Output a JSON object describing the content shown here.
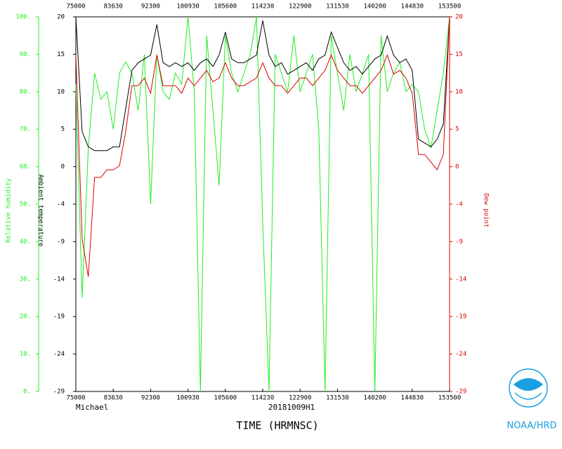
{
  "chart_data": {
    "type": "line",
    "flight": "Michael",
    "mission": "20181009H1",
    "xlabel": "TIME (HRMNSC)",
    "logo_text": "NOAA/HRD",
    "x": [
      28200,
      28665,
      29130,
      29595,
      30060,
      30525,
      30990,
      31455,
      31920,
      32385,
      32850,
      33315,
      33780,
      34245,
      34710,
      35175,
      35640,
      36105,
      36570,
      37035,
      37500,
      37965,
      38430,
      38895,
      39360,
      39825,
      40290,
      40755,
      41220,
      41685,
      42150,
      42615,
      43080,
      43545,
      44010,
      44475,
      44940,
      45405,
      45870,
      46335,
      46800,
      47265,
      47730,
      48195,
      48660,
      49125,
      49590,
      50055,
      50520,
      50985,
      51450,
      51915,
      52380,
      52845,
      53310,
      53775,
      54240,
      54705,
      55170,
      55635,
      56100
    ],
    "xlim": [
      28200,
      56100
    ],
    "xticks": [
      {
        "value": 28200,
        "label": "75000"
      },
      {
        "value": 30990,
        "label": "83630"
      },
      {
        "value": 33780,
        "label": "92300"
      },
      {
        "value": 36570,
        "label": "100930"
      },
      {
        "value": 39360,
        "label": "105600"
      },
      {
        "value": 42150,
        "label": "114230"
      },
      {
        "value": 44940,
        "label": "122900"
      },
      {
        "value": 47730,
        "label": "131530"
      },
      {
        "value": 50520,
        "label": "140200"
      },
      {
        "value": 53310,
        "label": "144830"
      },
      {
        "value": 56100,
        "label": "153500"
      }
    ],
    "ylim": [
      -29,
      20
    ],
    "yticks": [
      20,
      {
        "value": 15.1,
        "label": "15"
      },
      {
        "value": 10.2,
        "label": "10"
      },
      {
        "value": 5.3,
        "label": "5"
      },
      {
        "value": 0.4,
        "label": "0"
      },
      {
        "value": -4.5,
        "label": "-4"
      },
      {
        "value": -9.4,
        "label": "-9"
      },
      {
        "value": -14.3,
        "label": "-14"
      },
      {
        "value": -19.2,
        "label": "-19"
      },
      {
        "value": -24.1,
        "label": "-24"
      },
      -29
    ],
    "y2lim": [
      -29,
      20
    ],
    "y2ticks": [
      20,
      {
        "value": 15.1,
        "label": "15"
      },
      {
        "value": 10.2,
        "label": "10"
      },
      {
        "value": 5.3,
        "label": "5"
      },
      {
        "value": 0.4,
        "label": "0"
      },
      {
        "value": -4.5,
        "label": "-4"
      },
      {
        "value": -9.4,
        "label": "-9"
      },
      {
        "value": -14.3,
        "label": "-14"
      },
      {
        "value": -19.2,
        "label": "-19"
      },
      {
        "value": -24.1,
        "label": "-24"
      },
      -29
    ],
    "y3lim": [
      0,
      100
    ],
    "y3ticks": [
      {
        "value": 100,
        "label": "100."
      },
      {
        "value": 90,
        "label": "90."
      },
      {
        "value": 80,
        "label": "80."
      },
      {
        "value": 70,
        "label": "70."
      },
      {
        "value": 60,
        "label": "60."
      },
      {
        "value": 50,
        "label": "50."
      },
      {
        "value": 40,
        "label": "40."
      },
      {
        "value": 30,
        "label": "30."
      },
      {
        "value": 20,
        "label": "20."
      },
      {
        "value": 10,
        "label": "10."
      },
      {
        "value": 0,
        "label": "0."
      }
    ],
    "series": [
      {
        "name": "Relative humidity",
        "color": "#22ee22",
        "axis": "y3",
        "values": [
          82,
          25,
          65,
          85,
          78,
          80,
          70,
          85,
          88,
          85,
          75,
          90,
          50,
          90,
          80,
          78,
          85,
          82,
          100,
          80,
          0,
          95,
          75,
          55,
          95,
          85,
          80,
          85,
          90,
          100,
          45,
          0,
          90,
          85,
          80,
          95,
          80,
          85,
          90,
          70,
          0,
          95,
          85,
          75,
          90,
          80,
          85,
          90,
          0,
          95,
          80,
          85,
          88,
          80,
          82,
          80,
          70,
          65,
          75,
          85,
          100
        ]
      },
      {
        "name": "Ambient temperature",
        "color": "#000000",
        "values": [
          20,
          5,
          3,
          2.5,
          2.5,
          2.5,
          3,
          3,
          8,
          13,
          14,
          14.5,
          15,
          19,
          14,
          13.5,
          14,
          13.5,
          14,
          13,
          14,
          14.5,
          13.5,
          15,
          18,
          14.5,
          14,
          14,
          14.5,
          15,
          19.5,
          15,
          13.5,
          14,
          12.5,
          13,
          13.5,
          14,
          13,
          14.5,
          15,
          18,
          16,
          14,
          13,
          13.5,
          12.5,
          13.5,
          14.5,
          15,
          17.5,
          15,
          14,
          14.5,
          13,
          4,
          3.5,
          3,
          4,
          6,
          20
        ]
      },
      {
        "name": "Dew point",
        "color": "#dd0000",
        "axis": "y2",
        "values": [
          15,
          -9,
          -14,
          -1,
          -1,
          0,
          0,
          0.5,
          5,
          11,
          11,
          12,
          10,
          15,
          11,
          11,
          11,
          10,
          12,
          11,
          12,
          13,
          11.5,
          12,
          14,
          12,
          11,
          11,
          11.5,
          12,
          14,
          12,
          11,
          11,
          10,
          11,
          12,
          12,
          11,
          12,
          13,
          15,
          13,
          12,
          11,
          11,
          10,
          11,
          12,
          13,
          15,
          12.5,
          13,
          12,
          10,
          2,
          2,
          1,
          0,
          2,
          20
        ]
      }
    ]
  }
}
